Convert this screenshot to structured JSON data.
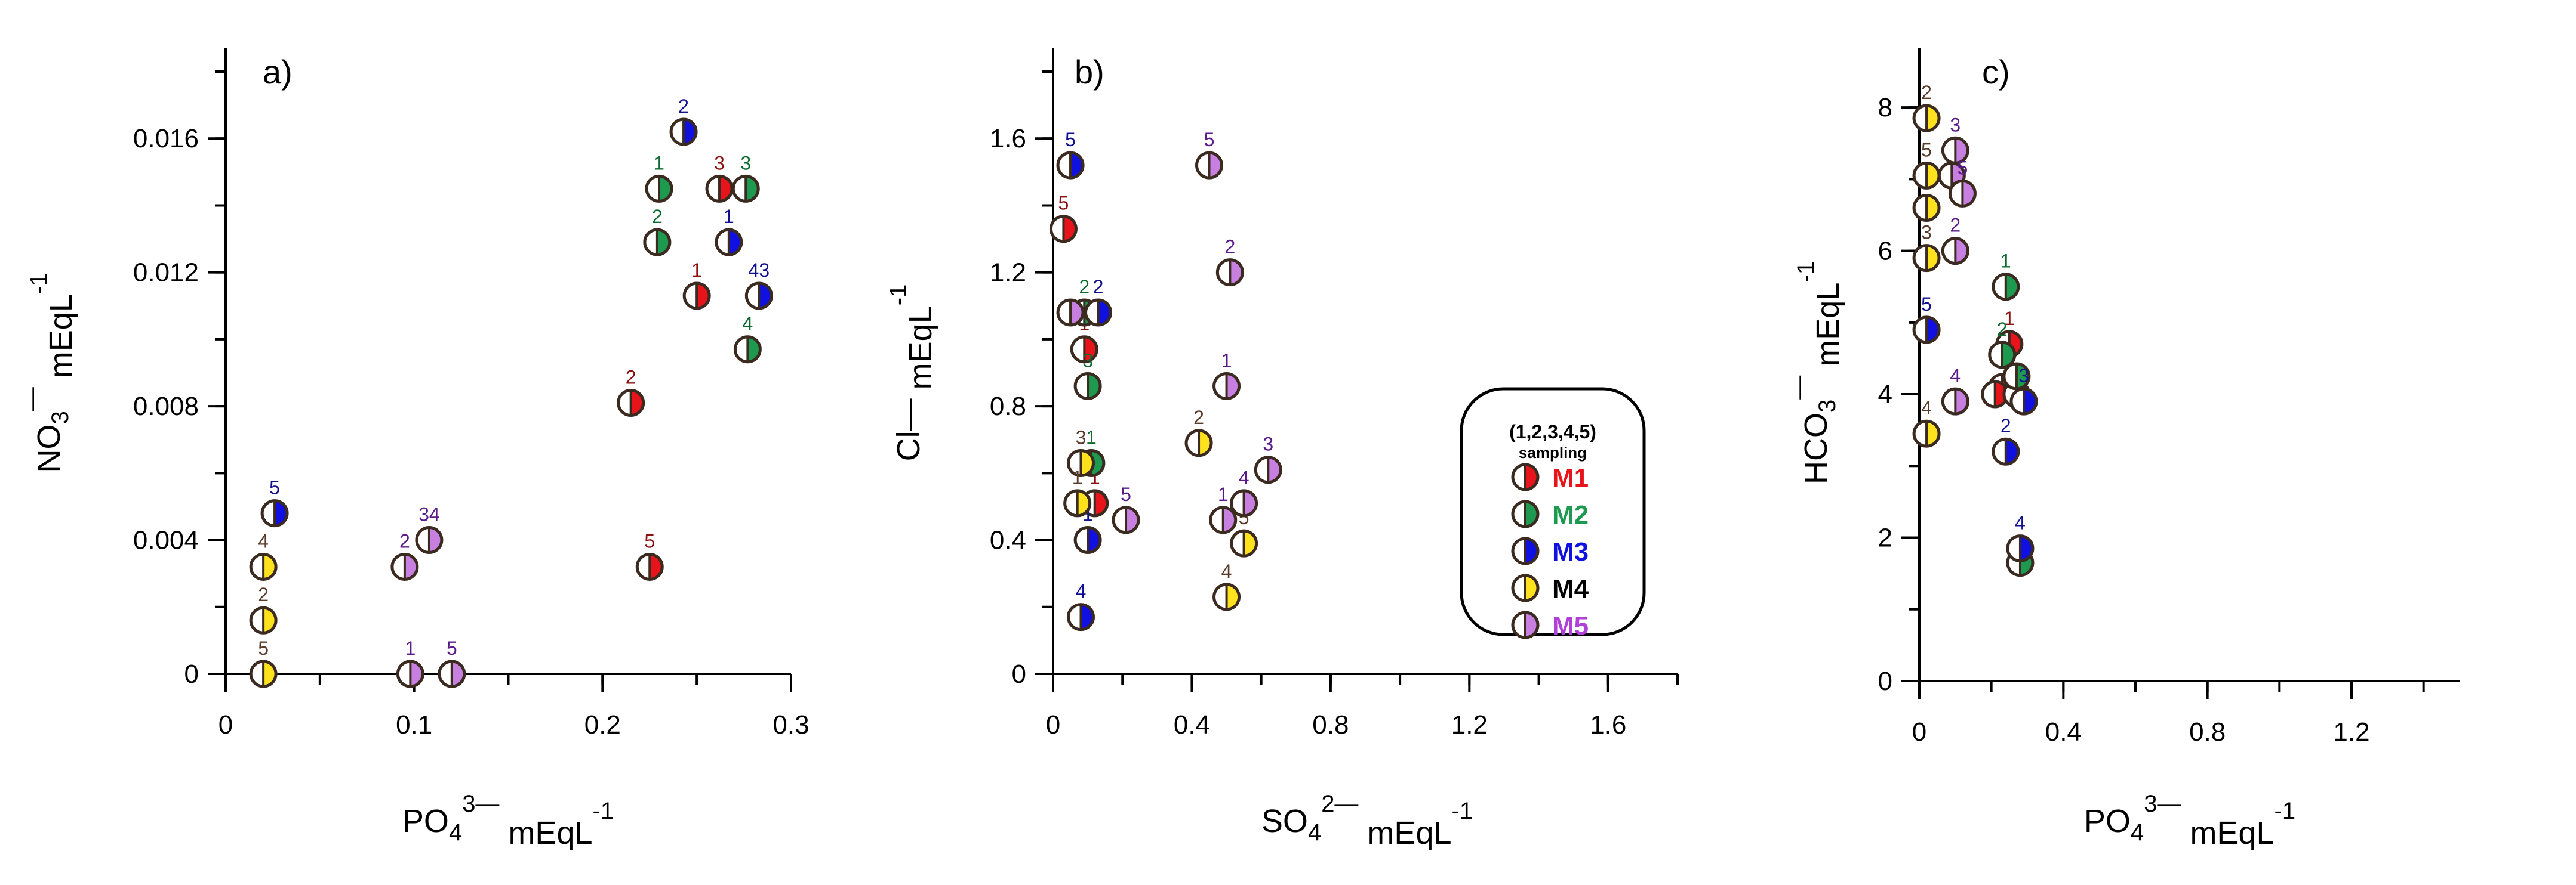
{
  "colors": {
    "M1": "#e8141c",
    "M2": "#1e9a50",
    "M3": "#1010e0",
    "M4": "#ffe21e",
    "M5": "#c77fe0",
    "M1_label": "#8b1010",
    "M2_label": "#0e6b30",
    "M3_label": "#101090",
    "M4_label": "#5a3a28",
    "M5_label": "#5a1a8a",
    "ring": "#3a2a20"
  },
  "legend": {
    "title_line1": "(1,2,3,4,5)",
    "title_line2": "sampling",
    "entries": [
      {
        "name": "M1",
        "color": "#e8141c"
      },
      {
        "name": "M2",
        "color": "#1e9a50"
      },
      {
        "name": "M3",
        "color": "#1010e0"
      },
      {
        "name": "M4",
        "color": "#000000"
      },
      {
        "name": "M5",
        "color": "#b040d8"
      }
    ]
  },
  "chart_data": [
    {
      "type": "scatter",
      "panel_label": "a)",
      "xlabel_main": "PO",
      "xlabel_sub": "4",
      "xlabel_sup": "3—",
      "xlabel_unit": " mEqL",
      "xlabel_unit_sup": "-1",
      "ylabel_main": "NO",
      "ylabel_sub": "3",
      "ylabel_sup": "—",
      "ylabel_unit": "  mEqL",
      "ylabel_unit_sup": "-1",
      "xlim": [
        0,
        0.3
      ],
      "ylim": [
        0,
        0.018
      ],
      "xticks": [
        0,
        0.1,
        0.2,
        0.3
      ],
      "xtick_labels": [
        "0",
        "0.1",
        "0.2",
        "0.3"
      ],
      "yticks": [
        0,
        0.004,
        0.008,
        0.012,
        0.016
      ],
      "ytick_labels": [
        "0",
        "0.004",
        "0.008",
        "0.012",
        "0.016"
      ],
      "series": [
        {
          "name": "M1",
          "points": [
            {
              "x": 0.25,
              "y": 0.0113,
              "label": "1"
            },
            {
              "x": 0.215,
              "y": 0.0081,
              "label": "2"
            },
            {
              "x": 0.262,
              "y": 0.0145,
              "label": "3"
            },
            {
              "x": 0.225,
              "y": 0.0032,
              "label": "5"
            }
          ]
        },
        {
          "name": "M2",
          "points": [
            {
              "x": 0.23,
              "y": 0.0145,
              "label": "1"
            },
            {
              "x": 0.229,
              "y": 0.0129,
              "label": "2"
            },
            {
              "x": 0.276,
              "y": 0.0145,
              "label": "3"
            },
            {
              "x": 0.277,
              "y": 0.0097,
              "label": "4"
            }
          ]
        },
        {
          "name": "M3",
          "points": [
            {
              "x": 0.267,
              "y": 0.0129,
              "label": "1"
            },
            {
              "x": 0.243,
              "y": 0.0162,
              "label": "2"
            },
            {
              "x": 0.283,
              "y": 0.0113,
              "label": "43"
            },
            {
              "x": 0.026,
              "y": 0.0048,
              "label": "5"
            }
          ]
        },
        {
          "name": "M4",
          "points": [
            {
              "x": 0.02,
              "y": 0.0032,
              "label": "4"
            },
            {
              "x": 0.02,
              "y": 0.0016,
              "label": "2"
            },
            {
              "x": 0.02,
              "y": 0.0,
              "label": "5"
            }
          ]
        },
        {
          "name": "M5",
          "points": [
            {
              "x": 0.098,
              "y": 0.0,
              "label": "1"
            },
            {
              "x": 0.095,
              "y": 0.0032,
              "label": "2"
            },
            {
              "x": 0.108,
              "y": 0.004,
              "label": "34"
            },
            {
              "x": 0.12,
              "y": 0.0,
              "label": "5"
            }
          ]
        }
      ]
    },
    {
      "type": "scatter",
      "panel_label": "b)",
      "xlabel_main": "SO",
      "xlabel_sub": "4",
      "xlabel_sup": "2—",
      "xlabel_unit": "   mEqL",
      "xlabel_unit_sup": "-1",
      "ylabel_main": "Cl—",
      "ylabel_sub": "",
      "ylabel_sup": "",
      "ylabel_unit": "  mEqL",
      "ylabel_unit_sup": "-1",
      "xlim": [
        0,
        1.8
      ],
      "ylim": [
        0,
        1.8
      ],
      "xticks": [
        0,
        0.4,
        0.8,
        1.2,
        1.6
      ],
      "xtick_labels": [
        "0",
        "0.4",
        "0.8",
        "1.2",
        "1.6"
      ],
      "yticks": [
        0,
        0.4,
        0.8,
        1.2,
        1.6
      ],
      "ytick_labels": [
        "0",
        "0.4",
        "0.8",
        "1.2",
        "1.6"
      ],
      "series": [
        {
          "name": "M1",
          "points": [
            {
              "x": 0.09,
              "y": 0.97,
              "label": "1"
            },
            {
              "x": 0.12,
              "y": 0.51,
              "label": "1"
            },
            {
              "x": 0.03,
              "y": 1.33,
              "label": "5"
            }
          ]
        },
        {
          "name": "M2",
          "points": [
            {
              "x": 0.1,
              "y": 0.86,
              "label": "3"
            },
            {
              "x": 0.11,
              "y": 0.63,
              "label": "1"
            },
            {
              "x": 0.09,
              "y": 1.08,
              "label": "2"
            }
          ]
        },
        {
          "name": "M3",
          "points": [
            {
              "x": 0.05,
              "y": 1.52,
              "label": "5"
            },
            {
              "x": 0.13,
              "y": 1.08,
              "label": "2"
            },
            {
              "x": 0.1,
              "y": 0.4,
              "label": "1"
            },
            {
              "x": 0.08,
              "y": 0.17,
              "label": "4"
            }
          ]
        },
        {
          "name": "M4",
          "points": [
            {
              "x": 0.08,
              "y": 0.63,
              "label": "3"
            },
            {
              "x": 0.07,
              "y": 0.51,
              "label": "1"
            },
            {
              "x": 0.42,
              "y": 0.69,
              "label": "2"
            },
            {
              "x": 0.55,
              "y": 0.39,
              "label": "5"
            },
            {
              "x": 0.5,
              "y": 0.23,
              "label": "4"
            }
          ]
        },
        {
          "name": "M5",
          "points": [
            {
              "x": 0.45,
              "y": 1.52,
              "label": "5"
            },
            {
              "x": 0.51,
              "y": 1.2,
              "label": "2"
            },
            {
              "x": 0.5,
              "y": 0.86,
              "label": "1"
            },
            {
              "x": 0.62,
              "y": 0.61,
              "label": "3"
            },
            {
              "x": 0.55,
              "y": 0.51,
              "label": "4"
            },
            {
              "x": 0.49,
              "y": 0.46,
              "label": "1"
            },
            {
              "x": 0.21,
              "y": 0.46,
              "label": "5"
            },
            {
              "x": 0.05,
              "y": 1.08,
              "label": ""
            }
          ]
        }
      ]
    },
    {
      "type": "scatter",
      "panel_label": "c)",
      "xlabel_main": "PO",
      "xlabel_sub": "4",
      "xlabel_sup": "3—",
      "xlabel_unit": "   mEqL",
      "xlabel_unit_sup": "-1",
      "ylabel_main": "HCO",
      "ylabel_sub": "3",
      "ylabel_sup": "—",
      "ylabel_unit": "   mEqL",
      "ylabel_unit_sup": "-1",
      "xlim": [
        0,
        1.5
      ],
      "ylim": [
        0,
        8.5
      ],
      "xticks": [
        0,
        0.4,
        0.8,
        1.2
      ],
      "xtick_labels": [
        "0",
        "0.4",
        "0.8",
        "1.2"
      ],
      "yticks": [
        0,
        2,
        4,
        6,
        8
      ],
      "ytick_labels": [
        "0",
        "2",
        "4",
        "6",
        "8"
      ],
      "series": [
        {
          "name": "M1",
          "points": [
            {
              "x": 0.25,
              "y": 4.7,
              "label": "1"
            },
            {
              "x": 0.23,
              "y": 4.1,
              "label": ""
            },
            {
              "x": 0.21,
              "y": 4.0,
              "label": ""
            },
            {
              "x": 0.27,
              "y": 4.0,
              "label": ""
            }
          ]
        },
        {
          "name": "M2",
          "points": [
            {
              "x": 0.24,
              "y": 5.5,
              "label": "1"
            },
            {
              "x": 0.23,
              "y": 4.55,
              "label": "2"
            },
            {
              "x": 0.27,
              "y": 4.25,
              "label": ""
            },
            {
              "x": 0.28,
              "y": 1.65,
              "label": ""
            }
          ]
        },
        {
          "name": "M3",
          "points": [
            {
              "x": 0.02,
              "y": 4.9,
              "label": "5"
            },
            {
              "x": 0.29,
              "y": 3.9,
              "label": "3"
            },
            {
              "x": 0.24,
              "y": 3.2,
              "label": "2"
            },
            {
              "x": 0.28,
              "y": 1.85,
              "label": "4"
            }
          ]
        },
        {
          "name": "M4",
          "points": [
            {
              "x": 0.02,
              "y": 7.85,
              "label": "2"
            },
            {
              "x": 0.02,
              "y": 7.05,
              "label": "5"
            },
            {
              "x": 0.02,
              "y": 6.6,
              "label": ""
            },
            {
              "x": 0.02,
              "y": 5.9,
              "label": "3"
            },
            {
              "x": 0.02,
              "y": 3.45,
              "label": "4"
            }
          ]
        },
        {
          "name": "M5",
          "points": [
            {
              "x": 0.1,
              "y": 7.4,
              "label": "3"
            },
            {
              "x": 0.09,
              "y": 7.05,
              "label": ""
            },
            {
              "x": 0.12,
              "y": 6.8,
              "label": "5"
            },
            {
              "x": 0.1,
              "y": 6.0,
              "label": "2"
            },
            {
              "x": 0.1,
              "y": 3.9,
              "label": "4"
            }
          ]
        }
      ]
    }
  ]
}
